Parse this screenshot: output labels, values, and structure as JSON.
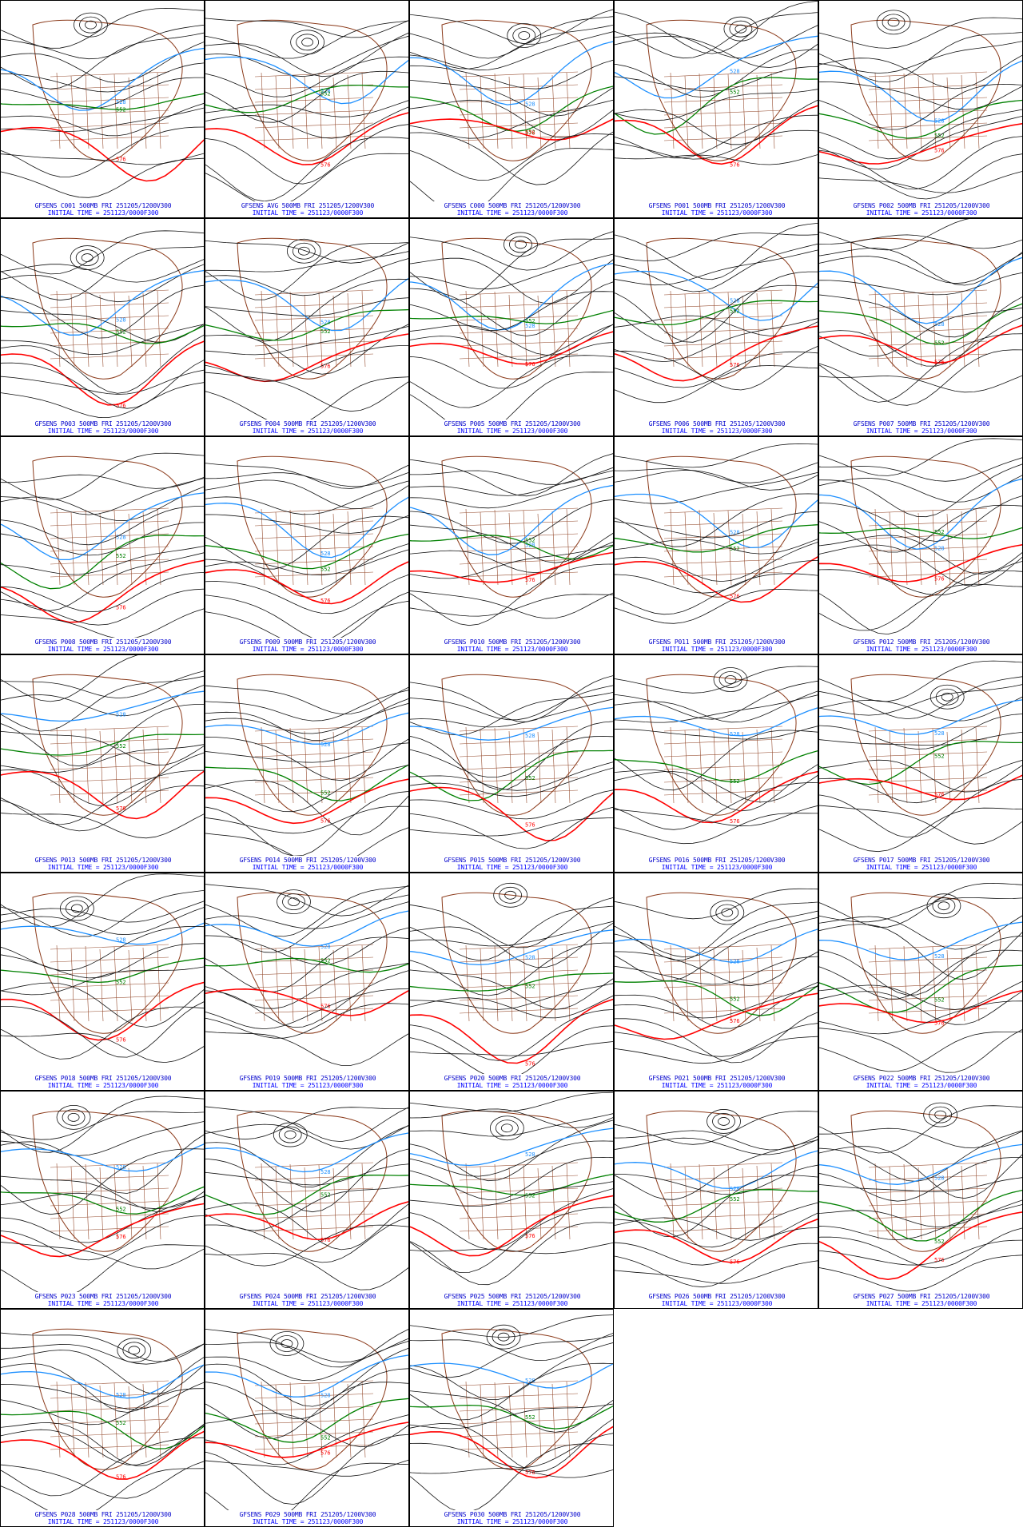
{
  "colors": {
    "contour": "#111111",
    "contour_552": "#008000",
    "contour_528": "#1e90ff",
    "contour_576": "#ff0000",
    "map_outline": "#8b3a1a",
    "caption": "#0000ff"
  },
  "contour_labels": {
    "low": "528",
    "mid": "552",
    "high": "576"
  },
  "panels": [
    {
      "id": "C001",
      "title": "GFSENS C001 500MB FRI 251205/1200V300",
      "init": "INITIAL TIME = 251123/0000F300"
    },
    {
      "id": "AVG",
      "title": "GFSENS AVG 500MB FRI 251205/1200V300",
      "init": "INITIAL TIME = 251123/0000F300"
    },
    {
      "id": "C000",
      "title": "GFSENS C000 500MB FRI 251205/1200V300",
      "init": "INITIAL TIME = 251123/0000F300"
    },
    {
      "id": "P001",
      "title": "GFSENS P001 500MB FRI 251205/1200V300",
      "init": "INITIAL TIME = 251123/0000F300"
    },
    {
      "id": "P002",
      "title": "GFSENS P002 500MB FRI 251205/1200V300",
      "init": "INITIAL TIME = 251123/0000F300"
    },
    {
      "id": "P003",
      "title": "GFSENS P003 500MB FRI 251205/1200V300",
      "init": "INITIAL TIME = 251123/0000F300"
    },
    {
      "id": "P004",
      "title": "GFSENS P004 500MB FRI 251205/1200V300",
      "init": "INITIAL TIME = 251123/0000F300"
    },
    {
      "id": "P005",
      "title": "GFSENS P005 500MB FRI 251205/1200V300",
      "init": "INITIAL TIME = 251123/0000F300"
    },
    {
      "id": "P006",
      "title": "GFSENS P006 500MB FRI 251205/1200V300",
      "init": "INITIAL TIME = 251123/0000F300"
    },
    {
      "id": "P007",
      "title": "GFSENS P007 500MB FRI 251205/1200V300",
      "init": "INITIAL TIME = 251123/0000F300"
    },
    {
      "id": "P008",
      "title": "GFSENS P008 500MB FRI 251205/1200V300",
      "init": "INITIAL TIME = 251123/0000F300"
    },
    {
      "id": "P009",
      "title": "GFSENS P009 500MB FRI 251205/1200V300",
      "init": "INITIAL TIME = 251123/0000F300"
    },
    {
      "id": "P010",
      "title": "GFSENS P010 500MB FRI 251205/1200V300",
      "init": "INITIAL TIME = 251123/0000F300"
    },
    {
      "id": "P011",
      "title": "GFSENS P011 500MB FRI 251205/1200V300",
      "init": "INITIAL TIME = 251123/0000F300"
    },
    {
      "id": "P012",
      "title": "GFSENS P012 500MB FRI 251205/1200V300",
      "init": "INITIAL TIME = 251123/0000F300"
    },
    {
      "id": "P013",
      "title": "GFSENS P013 500MB FRI 251205/1200V300",
      "init": "INITIAL TIME = 251123/0000F300"
    },
    {
      "id": "P014",
      "title": "GFSENS P014 500MB FRI 251205/1200V300",
      "init": "INITIAL TIME = 251123/0000F300"
    },
    {
      "id": "P015",
      "title": "GFSENS P015 500MB FRI 251205/1200V300",
      "init": "INITIAL TIME = 251123/0000F300"
    },
    {
      "id": "P016",
      "title": "GFSENS P016 500MB FRI 251205/1200V300",
      "init": "INITIAL TIME = 251123/0000F300"
    },
    {
      "id": "P017",
      "title": "GFSENS P017 500MB FRI 251205/1200V300",
      "init": "INITIAL TIME = 251123/0000F300"
    },
    {
      "id": "P018",
      "title": "GFSENS P018 500MB FRI 251205/1200V300",
      "init": "INITIAL TIME = 251123/0000F300"
    },
    {
      "id": "P019",
      "title": "GFSENS P019 500MB FRI 251205/1200V300",
      "init": "INITIAL TIME = 251123/0000F300"
    },
    {
      "id": "P020",
      "title": "GFSENS P020 500MB FRI 251205/1200V300",
      "init": "INITIAL TIME = 251123/0000F300"
    },
    {
      "id": "P021",
      "title": "GFSENS P021 500MB FRI 251205/1200V300",
      "init": "INITIAL TIME = 251123/0000F300"
    },
    {
      "id": "P022",
      "title": "GFSENS P022 500MB FRI 251205/1200V300",
      "init": "INITIAL TIME = 251123/0000F300"
    },
    {
      "id": "P023",
      "title": "GFSENS P023 500MB FRI 251205/1200V300",
      "init": "INITIAL TIME = 251123/0000F300"
    },
    {
      "id": "P024",
      "title": "GFSENS P024 500MB FRI 251205/1200V300",
      "init": "INITIAL TIME = 251123/0000F300"
    },
    {
      "id": "P025",
      "title": "GFSENS P025 500MB FRI 251205/1200V300",
      "init": "INITIAL TIME = 251123/0000F300"
    },
    {
      "id": "P026",
      "title": "GFSENS P026 500MB FRI 251205/1200V300",
      "init": "INITIAL TIME = 251123/0000F300"
    },
    {
      "id": "P027",
      "title": "GFSENS P027 500MB FRI 251205/1200V300",
      "init": "INITIAL TIME = 251123/0000F300"
    },
    {
      "id": "P028",
      "title": "GFSENS P028 500MB FRI 251205/1200V300",
      "init": "INITIAL TIME = 251123/0000F300"
    },
    {
      "id": "P029",
      "title": "GFSENS P029 500MB FRI 251205/1200V300",
      "init": "INITIAL TIME = 251123/0000F300"
    },
    {
      "id": "P030",
      "title": "GFSENS P030 500MB FRI 251205/1200V300",
      "init": "INITIAL TIME = 251123/0000F300"
    }
  ]
}
